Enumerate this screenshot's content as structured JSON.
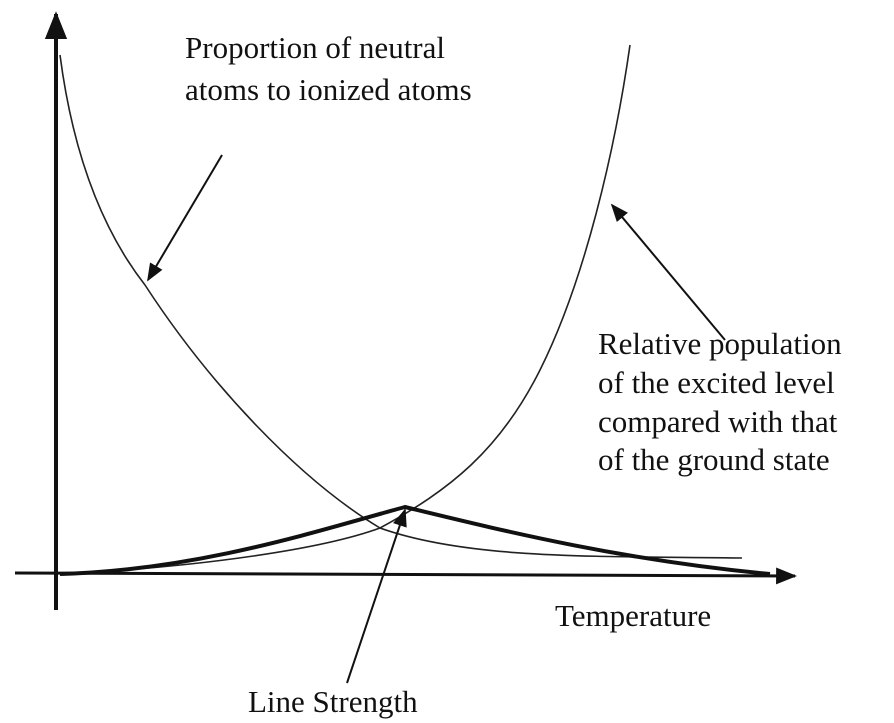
{
  "labels": {
    "neutral": [
      "Proportion of neutral",
      "atoms to ionized atoms"
    ],
    "excited": [
      "Relative population",
      "of the excited level",
      "compared with that",
      "of the ground state"
    ],
    "x_axis": "Temperature",
    "line_strength": "Line Strength"
  }
}
